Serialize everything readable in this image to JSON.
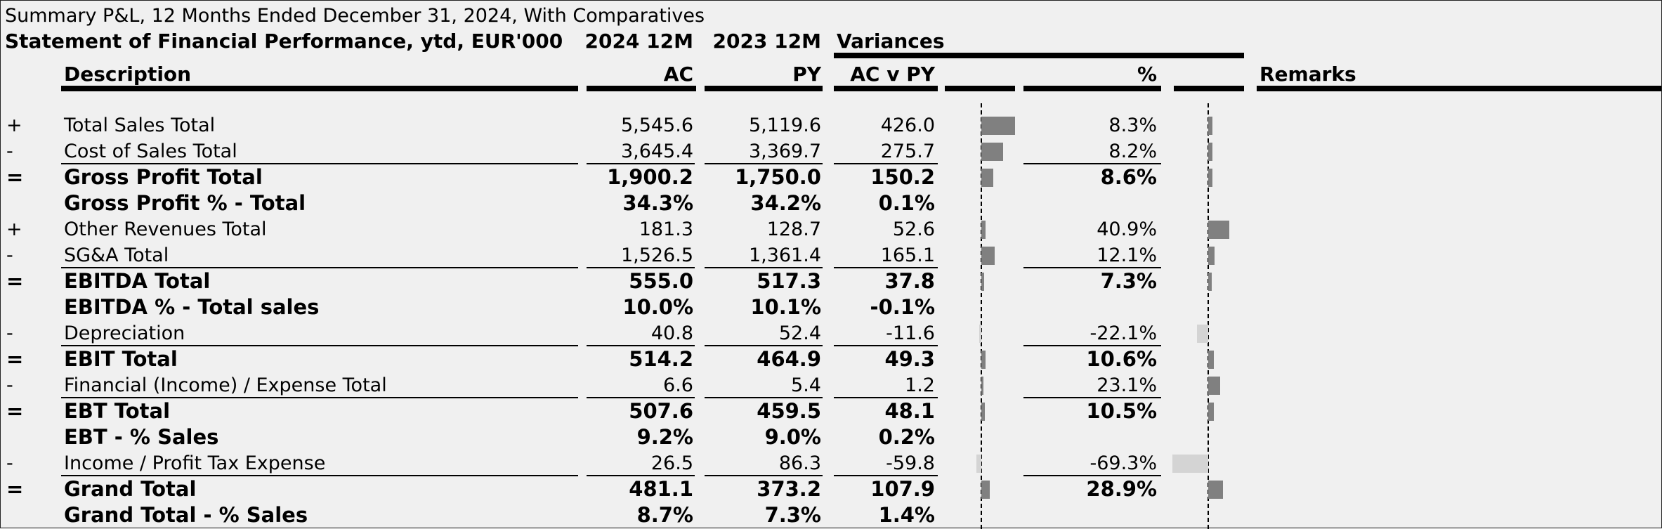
{
  "title": "Summary P&L, 12 Months Ended December 31, 2024, With Comparatives",
  "header": {
    "statement": "Statement of Financial Performance, ytd, EUR'000",
    "col_2024": "2024 12M",
    "col_2023": "2023 12M",
    "variances": "Variances",
    "description": "Description",
    "ac": "AC",
    "py": "PY",
    "acvpy": "AC v PY",
    "pct": "%",
    "remarks": "Remarks"
  },
  "colors": {
    "bar_positive": "#808080",
    "bar_negative": "#d4d4d4",
    "background": "#f0f0f0"
  },
  "rows": [
    {
      "sign": "+",
      "desc": "Total Sales Total",
      "ac": "5,545.6",
      "py": "5,119.6",
      "var": "426.0",
      "pct": "8.3%",
      "bold": false,
      "under": false,
      "var_value": 426.0,
      "pct_value": 8.3
    },
    {
      "sign": "-",
      "desc": "Cost of Sales Total",
      "ac": "3,645.4",
      "py": "3,369.7",
      "var": "275.7",
      "pct": "8.2%",
      "bold": false,
      "under": true,
      "var_value": 275.7,
      "pct_value": 8.2
    },
    {
      "sign": "=",
      "desc": "Gross Profit Total",
      "ac": "1,900.2",
      "py": "1,750.0",
      "var": "150.2",
      "pct": "8.6%",
      "bold": true,
      "under": false,
      "var_value": 150.2,
      "pct_value": 8.6
    },
    {
      "sign": "",
      "desc": "Gross Profit % - Total",
      "ac": "34.3%",
      "py": "34.2%",
      "var": "0.1%",
      "pct": "",
      "bold": true,
      "under": false,
      "var_value": null,
      "pct_value": null
    },
    {
      "sign": "+",
      "desc": "Other Revenues Total",
      "ac": "181.3",
      "py": "128.7",
      "var": "52.6",
      "pct": "40.9%",
      "bold": false,
      "under": false,
      "var_value": 52.6,
      "pct_value": 40.9
    },
    {
      "sign": "-",
      "desc": "SG&A Total",
      "ac": "1,526.5",
      "py": "1,361.4",
      "var": "165.1",
      "pct": "12.1%",
      "bold": false,
      "under": true,
      "var_value": 165.1,
      "pct_value": 12.1
    },
    {
      "sign": "=",
      "desc": "EBITDA Total",
      "ac": "555.0",
      "py": "517.3",
      "var": "37.8",
      "pct": "7.3%",
      "bold": true,
      "under": false,
      "var_value": 37.8,
      "pct_value": 7.3
    },
    {
      "sign": "",
      "desc": "EBITDA % - Total sales",
      "ac": "10.0%",
      "py": "10.1%",
      "var": "-0.1%",
      "pct": "",
      "bold": true,
      "under": false,
      "var_value": null,
      "pct_value": null
    },
    {
      "sign": "-",
      "desc": "Depreciation",
      "ac": "40.8",
      "py": "52.4",
      "var": "-11.6",
      "pct": "-22.1%",
      "bold": false,
      "under": true,
      "var_value": -11.6,
      "pct_value": -22.1
    },
    {
      "sign": "=",
      "desc": "EBIT Total",
      "ac": "514.2",
      "py": "464.9",
      "var": "49.3",
      "pct": "10.6%",
      "bold": true,
      "under": false,
      "var_value": 49.3,
      "pct_value": 10.6
    },
    {
      "sign": "-",
      "desc": "Financial (Income) / Expense Total",
      "ac": "6.6",
      "py": "5.4",
      "var": "1.2",
      "pct": "23.1%",
      "bold": false,
      "under": true,
      "var_value": 1.2,
      "pct_value": 23.1
    },
    {
      "sign": "=",
      "desc": "EBT Total",
      "ac": "507.6",
      "py": "459.5",
      "var": "48.1",
      "pct": "10.5%",
      "bold": true,
      "under": false,
      "var_value": 48.1,
      "pct_value": 10.5
    },
    {
      "sign": "",
      "desc": "EBT - % Sales",
      "ac": "9.2%",
      "py": "9.0%",
      "var": "0.2%",
      "pct": "",
      "bold": true,
      "under": false,
      "var_value": null,
      "pct_value": null
    },
    {
      "sign": "-",
      "desc": "Income / Profit Tax Expense",
      "ac": "26.5",
      "py": "86.3",
      "var": "-59.8",
      "pct": "-69.3%",
      "bold": false,
      "under": true,
      "var_value": -59.8,
      "pct_value": -69.3
    },
    {
      "sign": "=",
      "desc": "Grand Total",
      "ac": "481.1",
      "py": "373.2",
      "var": "107.9",
      "pct": "28.9%",
      "bold": true,
      "under": false,
      "var_value": 107.9,
      "pct_value": 28.9
    },
    {
      "sign": "",
      "desc": "Grand Total - % Sales",
      "ac": "8.7%",
      "py": "7.3%",
      "var": "1.4%",
      "pct": "",
      "bold": true,
      "under": false,
      "var_value": null,
      "pct_value": null
    }
  ]
}
